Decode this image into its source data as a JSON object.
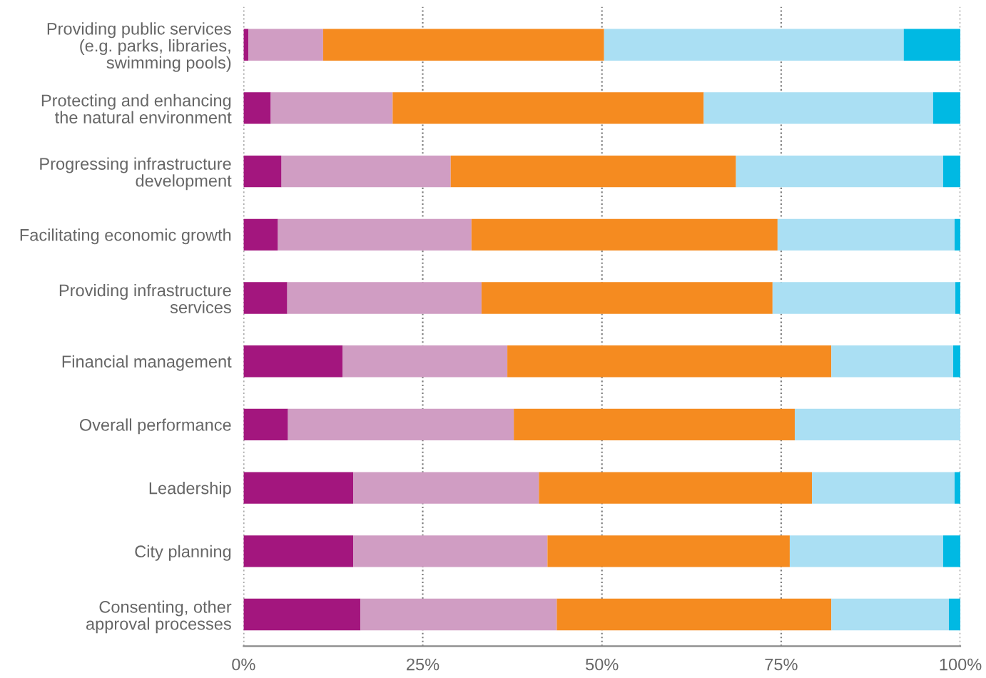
{
  "chart_data": {
    "type": "bar",
    "orientation": "horizontal",
    "stacked": true,
    "categories": [
      "Providing public services\n(e.g. parks, libraries,\nswimming pools)",
      "Protecting and enhancing\nthe natural environment",
      "Progressing infrastructure\ndevelopment",
      "Facilitating economic growth",
      "Providing infrastructure\nservices",
      "Financial management",
      "Overall performance",
      "Leadership",
      "City planning",
      "Consenting, other\napproval processes"
    ],
    "series": [
      {
        "color": "#a3167e",
        "values": [
          0.7,
          3.8,
          5.3,
          4.8,
          6.1,
          13.8,
          6.2,
          15.3,
          15.3,
          16.3
        ]
      },
      {
        "color": "#d09dc3",
        "values": [
          10.4,
          17.0,
          23.6,
          27.0,
          27.1,
          23.0,
          31.5,
          25.9,
          27.1,
          27.4
        ]
      },
      {
        "color": "#f58b20",
        "values": [
          39.2,
          43.4,
          39.8,
          42.7,
          40.6,
          45.2,
          39.2,
          38.1,
          33.8,
          38.3
        ]
      },
      {
        "color": "#aadff3",
        "values": [
          41.8,
          32.0,
          28.9,
          24.7,
          25.5,
          17.0,
          23.1,
          19.9,
          21.4,
          16.4
        ]
      },
      {
        "color": "#00b9e3",
        "values": [
          7.9,
          3.8,
          2.4,
          0.8,
          0.7,
          1.0,
          0,
          0.8,
          2.4,
          1.6
        ]
      }
    ],
    "xlim": [
      0,
      100
    ],
    "xticks": [
      {
        "value": 0,
        "label": "0%"
      },
      {
        "value": 25,
        "label": "25%"
      },
      {
        "value": 50,
        "label": "50%"
      },
      {
        "value": 75,
        "label": "75%"
      },
      {
        "value": 100,
        "label": "100%"
      }
    ],
    "grid": "x",
    "line_style": "dotted"
  }
}
